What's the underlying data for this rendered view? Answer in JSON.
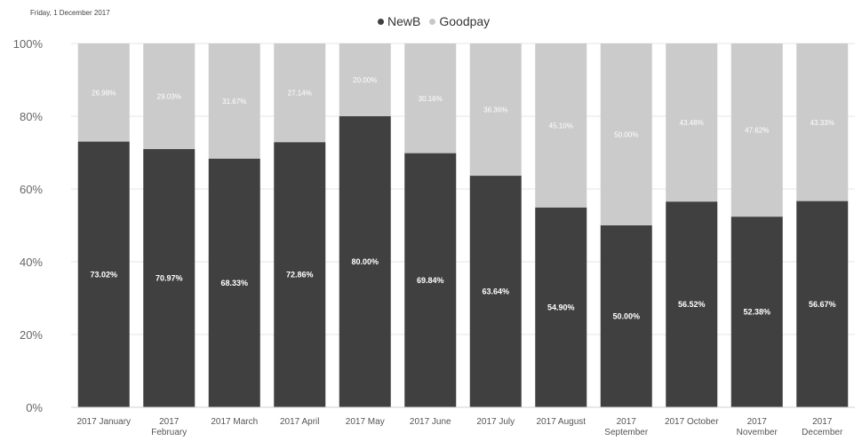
{
  "date_text": "Friday, 1 December 2017",
  "legend": [
    {
      "label": "NewB",
      "color": "#404040"
    },
    {
      "label": "Goodpay",
      "color": "#c8c8c8"
    }
  ],
  "colors": {
    "newb": "#404040",
    "goodpay": "#cbcbcb",
    "gridline": "#e6e6e6"
  },
  "chart_data": {
    "type": "bar",
    "stacked": true,
    "percent_stacked": true,
    "categories": [
      "2017 January",
      "2017 February",
      "2017 March",
      "2017 April",
      "2017 May",
      "2017 June",
      "2017 July",
      "2017 August",
      "2017 September",
      "2017 October",
      "2017 November",
      "2017 December"
    ],
    "series": [
      {
        "name": "NewB",
        "values": [
          73.02,
          70.97,
          68.33,
          72.86,
          80.0,
          69.84,
          63.64,
          54.9,
          50.0,
          56.52,
          52.38,
          56.67
        ],
        "labels": [
          "73.02%",
          "70.97%",
          "68.33%",
          "72.86%",
          "80.00%",
          "69.84%",
          "63.64%",
          "54.90%",
          "50.00%",
          "56.52%",
          "52.38%",
          "56.67%"
        ]
      },
      {
        "name": "Goodpay",
        "values": [
          26.98,
          29.03,
          31.67,
          27.14,
          20.0,
          30.16,
          36.36,
          45.1,
          50.0,
          43.48,
          47.62,
          43.33
        ],
        "labels": [
          "26.98%",
          "29.03%",
          "31.67%",
          "27.14%",
          "20.00%",
          "30.16%",
          "36.36%",
          "45.10%",
          "50.00%",
          "43.48%",
          "47.62%",
          "43.33%"
        ]
      }
    ],
    "y_ticks": [
      "0%",
      "20%",
      "40%",
      "60%",
      "80%",
      "100%"
    ],
    "ylim": [
      0,
      100
    ],
    "legend_position": "top-center",
    "grid": true
  }
}
